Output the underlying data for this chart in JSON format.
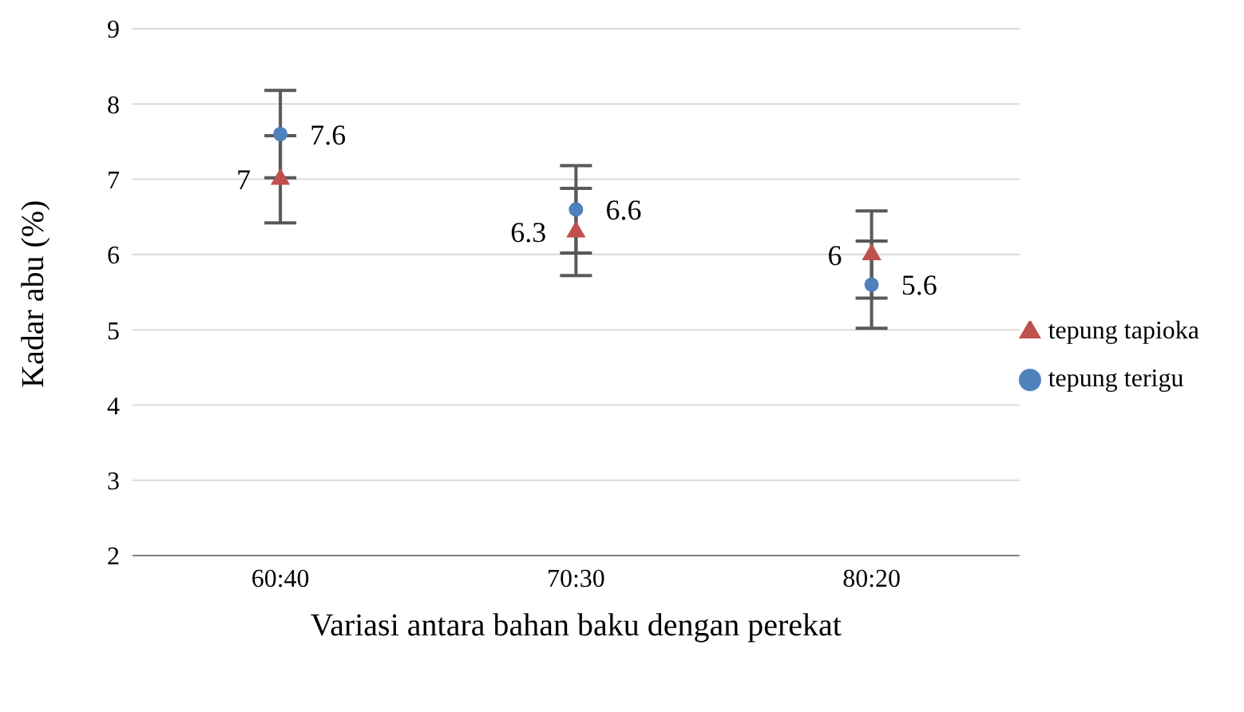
{
  "chart_data": {
    "type": "scatter",
    "xlabel": "Variasi antara bahan baku dengan perekat",
    "ylabel": "Kadar abu (%)",
    "categories": [
      "60:40",
      "70:30",
      "80:20"
    ],
    "series": [
      {
        "name": "tepung terigu",
        "color": "#4f81bd",
        "marker": "circle",
        "values": [
          7.6,
          6.6,
          5.6
        ],
        "errors": [
          0.58,
          0.58,
          0.58
        ]
      },
      {
        "name": "tepung tapioka",
        "color": "#c0504d",
        "marker": "triangle",
        "values": [
          7,
          6.3,
          6
        ],
        "errors": [
          0.58,
          0.58,
          0.58
        ]
      }
    ],
    "ylim": [
      2,
      9
    ],
    "yticks": [
      2,
      3,
      4,
      5,
      6,
      7,
      8,
      9
    ],
    "grid": "y",
    "legend": "right",
    "data_labels": true
  }
}
